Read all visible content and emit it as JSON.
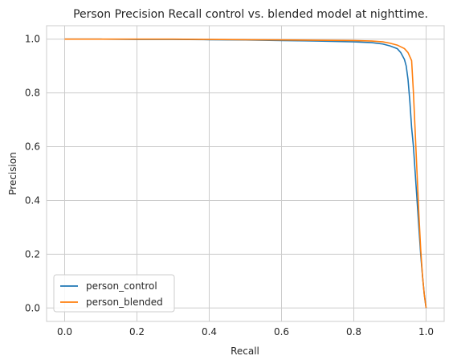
{
  "chart_data": {
    "type": "line",
    "title": "Person Precision Recall control vs. blended model at nighttime.",
    "xlabel": "Recall",
    "ylabel": "Precision",
    "xlim": [
      -0.05,
      1.05
    ],
    "ylim": [
      -0.05,
      1.05
    ],
    "xticks": [
      0.0,
      0.2,
      0.4,
      0.6,
      0.8,
      1.0
    ],
    "yticks": [
      0.0,
      0.2,
      0.4,
      0.6,
      0.8,
      1.0
    ],
    "xtick_labels": [
      "0.0",
      "0.2",
      "0.4",
      "0.6",
      "0.8",
      "1.0"
    ],
    "ytick_labels": [
      "0.0",
      "0.2",
      "0.4",
      "0.6",
      "0.8",
      "1.0"
    ],
    "grid": true,
    "legend_position": "lower-left",
    "series": [
      {
        "name": "person_control",
        "color": "#1f77b4",
        "x": [
          0.0,
          0.1,
          0.2,
          0.3,
          0.4,
          0.5,
          0.6,
          0.7,
          0.8,
          0.85,
          0.88,
          0.9,
          0.92,
          0.93,
          0.94,
          0.945,
          0.95,
          0.955,
          0.96,
          0.965,
          0.97,
          0.975,
          0.98,
          0.985,
          0.99,
          0.995,
          1.0
        ],
        "y": [
          1.0,
          1.0,
          0.999,
          0.999,
          0.998,
          0.997,
          0.995,
          0.993,
          0.99,
          0.987,
          0.982,
          0.975,
          0.965,
          0.95,
          0.925,
          0.9,
          0.85,
          0.77,
          0.67,
          0.6,
          0.5,
          0.4,
          0.3,
          0.2,
          0.12,
          0.05,
          0.0
        ]
      },
      {
        "name": "person_blended",
        "color": "#ff7f0e",
        "x": [
          0.0,
          0.1,
          0.2,
          0.3,
          0.4,
          0.5,
          0.6,
          0.7,
          0.8,
          0.85,
          0.88,
          0.9,
          0.92,
          0.94,
          0.95,
          0.96,
          0.965,
          0.97,
          0.975,
          0.98,
          0.985,
          0.99,
          0.995,
          1.0
        ],
        "y": [
          1.0,
          1.0,
          1.0,
          1.0,
          0.999,
          0.998,
          0.997,
          0.996,
          0.995,
          0.993,
          0.99,
          0.985,
          0.978,
          0.965,
          0.95,
          0.92,
          0.8,
          0.65,
          0.5,
          0.35,
          0.22,
          0.12,
          0.05,
          0.0
        ]
      }
    ]
  }
}
